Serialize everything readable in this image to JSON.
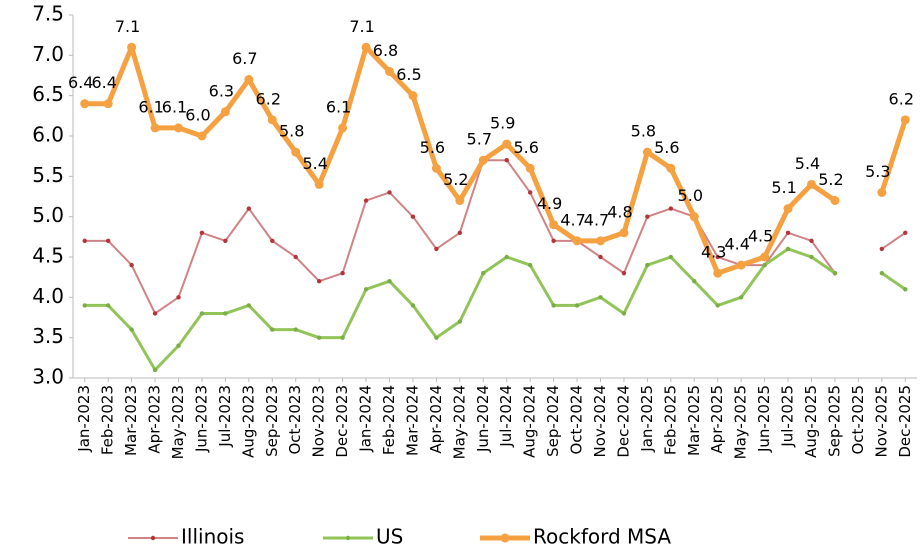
{
  "chart_data": {
    "type": "line",
    "categories": [
      "Jan-2023",
      "Feb-2023",
      "Mar-2023",
      "Apr-2023",
      "May-2023",
      "Jun-2023",
      "Jul-2023",
      "Aug-2023",
      "Sep-2023",
      "Oct-2023",
      "Nov-2023",
      "Dec-2023",
      "Jan-2024",
      "Feb-2024",
      "Mar-2024",
      "Apr-2024",
      "May-2024",
      "Jun-2024",
      "Jul-2024",
      "Aug-2024",
      "Sep-2024",
      "Oct-2024",
      "Nov-2024",
      "Dec-2024",
      "Jan-2025",
      "Feb-2025",
      "Mar-2025",
      "Apr-2025",
      "May-2025",
      "Jun-2025",
      "Jul-2025",
      "Aug-2025",
      "Sep-2025",
      "Oct-2025",
      "Nov-2025",
      "Dec-2025"
    ],
    "series": [
      {
        "name": "Illinois",
        "color": "#d08386",
        "marker_color": "#b5343a",
        "width": 2,
        "values": [
          4.7,
          4.7,
          4.4,
          3.8,
          4.0,
          4.8,
          4.7,
          5.1,
          4.7,
          4.5,
          4.2,
          4.3,
          5.2,
          5.3,
          5.0,
          4.6,
          4.8,
          5.7,
          5.7,
          5.3,
          4.7,
          4.7,
          4.5,
          4.3,
          5.0,
          5.1,
          5.0,
          4.5,
          4.4,
          4.4,
          4.8,
          4.7,
          4.3,
          null,
          4.6,
          4.8
        ]
      },
      {
        "name": "US",
        "color": "#92c45a",
        "marker_color": "#7aad45",
        "width": 3,
        "values": [
          3.9,
          3.9,
          3.6,
          3.1,
          3.4,
          3.8,
          3.8,
          3.9,
          3.6,
          3.6,
          3.5,
          3.5,
          4.1,
          4.2,
          3.9,
          3.5,
          3.7,
          4.3,
          4.5,
          4.4,
          3.9,
          3.9,
          4.0,
          3.8,
          4.4,
          4.5,
          4.2,
          3.9,
          4.0,
          4.4,
          4.6,
          4.5,
          4.3,
          null,
          4.3,
          4.1
        ]
      },
      {
        "name": "Rockford MSA",
        "color": "#f5a142",
        "marker_color": "#f5a142",
        "width": 5,
        "values": [
          6.4,
          6.4,
          7.1,
          6.1,
          6.1,
          6.0,
          6.3,
          6.7,
          6.2,
          5.8,
          5.4,
          6.1,
          7.1,
          6.8,
          6.5,
          5.6,
          5.2,
          5.7,
          5.9,
          5.6,
          4.9,
          4.7,
          4.7,
          4.8,
          5.8,
          5.6,
          5.0,
          4.3,
          4.4,
          4.5,
          5.1,
          5.4,
          5.2,
          null,
          5.3,
          6.2
        ],
        "value_labels": [
          "6.4",
          "6.4",
          "7.1",
          "6.1",
          "6.1",
          "6.0",
          "6.3",
          "6.7",
          "6.2",
          "5.8",
          "5.4",
          "6.1",
          "7.1",
          "6.8",
          "6.5",
          "5.6",
          "5.2",
          "5.7",
          "5.9",
          "5.6",
          "4.9",
          "4.7",
          "4.7",
          "4.8",
          "5.8",
          "5.6",
          "5.0",
          "4.3",
          "4.4",
          "4.5",
          "5.1",
          "5.4",
          "5.2",
          null,
          "5.3",
          "6.2"
        ]
      }
    ],
    "ylim": [
      3.0,
      7.5
    ],
    "yticks": [
      {
        "value": 3,
        "label": "3.0"
      },
      3.5,
      {
        "value": 4,
        "label": "4.0"
      },
      4.5,
      {
        "value": 5,
        "label": "5.0"
      },
      5.5,
      {
        "value": 6,
        "label": "6.0"
      },
      6.5,
      {
        "value": 7,
        "label": "7.0"
      },
      7.5
    ],
    "legend": "bottom"
  }
}
